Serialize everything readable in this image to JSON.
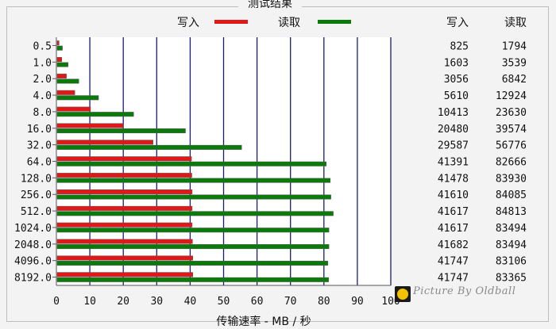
{
  "chart_data": {
    "type": "bar",
    "title": "测试结果",
    "xlabel": "传输速率 - MB / 秒",
    "xlim": [
      0,
      100
    ],
    "xticks": [
      0,
      10,
      20,
      30,
      40,
      50,
      60,
      70,
      80,
      90,
      100
    ],
    "categories": [
      "0.5",
      "1.0",
      "2.0",
      "4.0",
      "8.0",
      "16.0",
      "32.0",
      "64.0",
      "128.0",
      "256.0",
      "512.0",
      "1024.0",
      "2048.0",
      "4096.0",
      "8192.0"
    ],
    "series": [
      {
        "name": "写入",
        "color": "#e01818",
        "values": [
          0.8,
          1.6,
          3.0,
          5.5,
          10.2,
          20.0,
          28.9,
          40.4,
          40.5,
          40.6,
          40.6,
          40.6,
          40.7,
          40.8,
          40.8
        ]
      },
      {
        "name": "读取",
        "color": "#0a7a0a",
        "values": [
          1.8,
          3.5,
          6.7,
          12.6,
          23.1,
          38.6,
          55.4,
          80.7,
          81.9,
          82.1,
          82.8,
          81.5,
          81.5,
          81.2,
          81.4
        ]
      }
    ],
    "table": {
      "headers": [
        "写入",
        "读取"
      ],
      "rows": [
        [
          "825",
          "1794"
        ],
        [
          "1603",
          "3539"
        ],
        [
          "3056",
          "6842"
        ],
        [
          "5610",
          "12924"
        ],
        [
          "10413",
          "23630"
        ],
        [
          "20480",
          "39574"
        ],
        [
          "29587",
          "56776"
        ],
        [
          "41391",
          "82666"
        ],
        [
          "41478",
          "83930"
        ],
        [
          "41610",
          "84085"
        ],
        [
          "41617",
          "84813"
        ],
        [
          "41617",
          "83494"
        ],
        [
          "41682",
          "83494"
        ],
        [
          "41747",
          "83106"
        ],
        [
          "41747",
          "83365"
        ]
      ]
    },
    "grid": true,
    "legend": "top"
  },
  "watermark": "Picture By Oldball",
  "colors": {
    "plot_bg": "#ffffff",
    "grid": "#1a1a7a",
    "write": "#e01818",
    "read": "#0a7a0a"
  }
}
